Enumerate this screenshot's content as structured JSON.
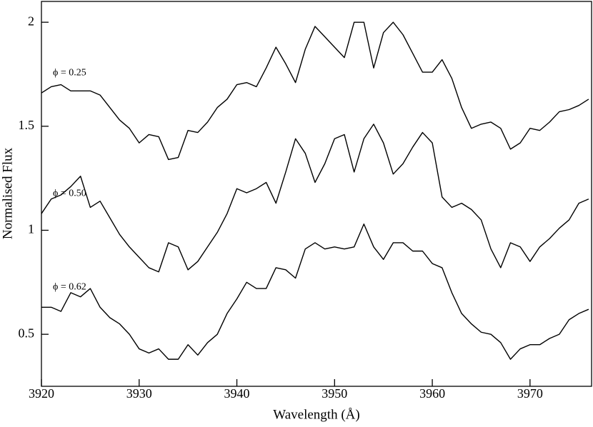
{
  "chart_data": {
    "type": "line",
    "xlabel": "Wavelength (Å)",
    "ylabel": "Normalised Flux",
    "xlim": [
      3920,
      3976.3
    ],
    "xticks": [
      3920,
      3930,
      3940,
      3950,
      3960,
      3970
    ],
    "ylim": [
      0.25,
      2.1
    ],
    "yticks": [
      0.5,
      1,
      1.5,
      2
    ],
    "grid": false,
    "x": [
      3920,
      3921,
      3922,
      3923,
      3924,
      3925,
      3926,
      3927,
      3928,
      3929,
      3930,
      3931,
      3932,
      3933,
      3934,
      3935,
      3936,
      3937,
      3938,
      3939,
      3940,
      3941,
      3942,
      3943,
      3944,
      3945,
      3946,
      3947,
      3948,
      3949,
      3950,
      3951,
      3952,
      3953,
      3954,
      3955,
      3956,
      3957,
      3958,
      3959,
      3960,
      3961,
      3962,
      3963,
      3964,
      3965,
      3966,
      3967,
      3968,
      3969,
      3970,
      3971,
      3972,
      3973,
      3974,
      3975,
      3976
    ],
    "series": [
      {
        "name": "ϕ = 0.25",
        "color": "#000000",
        "values": [
          1.66,
          1.69,
          1.7,
          1.67,
          1.67,
          1.67,
          1.65,
          1.59,
          1.53,
          1.49,
          1.42,
          1.46,
          1.45,
          1.34,
          1.35,
          1.48,
          1.47,
          1.52,
          1.59,
          1.63,
          1.7,
          1.71,
          1.69,
          1.78,
          1.88,
          1.8,
          1.71,
          1.87,
          1.98,
          1.93,
          1.88,
          1.83,
          2.0,
          2.0,
          1.78,
          1.95,
          2.0,
          1.94,
          1.85,
          1.76,
          1.76,
          1.82,
          1.73,
          1.59,
          1.49,
          1.51,
          1.52,
          1.49,
          1.39,
          1.42,
          1.49,
          1.48,
          1.52,
          1.57,
          1.58,
          1.6,
          1.63
        ]
      },
      {
        "name": "ϕ = 0.50",
        "color": "#000000",
        "values": [
          1.08,
          1.15,
          1.17,
          1.21,
          1.26,
          1.11,
          1.14,
          1.06,
          0.98,
          0.92,
          0.87,
          0.82,
          0.8,
          0.94,
          0.92,
          0.81,
          0.85,
          0.92,
          0.99,
          1.08,
          1.2,
          1.18,
          1.2,
          1.23,
          1.13,
          1.28,
          1.44,
          1.37,
          1.23,
          1.32,
          1.44,
          1.46,
          1.28,
          1.44,
          1.51,
          1.42,
          1.27,
          1.32,
          1.4,
          1.47,
          1.42,
          1.16,
          1.11,
          1.13,
          1.1,
          1.05,
          0.91,
          0.82,
          0.94,
          0.92,
          0.85,
          0.92,
          0.96,
          1.01,
          1.05,
          1.13,
          1.15
        ]
      },
      {
        "name": "ϕ = 0.62",
        "color": "#000000",
        "values": [
          0.63,
          0.63,
          0.61,
          0.7,
          0.68,
          0.72,
          0.63,
          0.58,
          0.55,
          0.5,
          0.43,
          0.41,
          0.43,
          0.38,
          0.38,
          0.45,
          0.4,
          0.46,
          0.5,
          0.6,
          0.67,
          0.75,
          0.72,
          0.72,
          0.82,
          0.81,
          0.77,
          0.91,
          0.94,
          0.91,
          0.92,
          0.91,
          0.92,
          1.03,
          0.92,
          0.86,
          0.94,
          0.94,
          0.9,
          0.9,
          0.84,
          0.82,
          0.7,
          0.6,
          0.55,
          0.51,
          0.5,
          0.46,
          0.38,
          0.43,
          0.45,
          0.45,
          0.48,
          0.5,
          0.57,
          0.6,
          0.62
        ]
      }
    ]
  }
}
